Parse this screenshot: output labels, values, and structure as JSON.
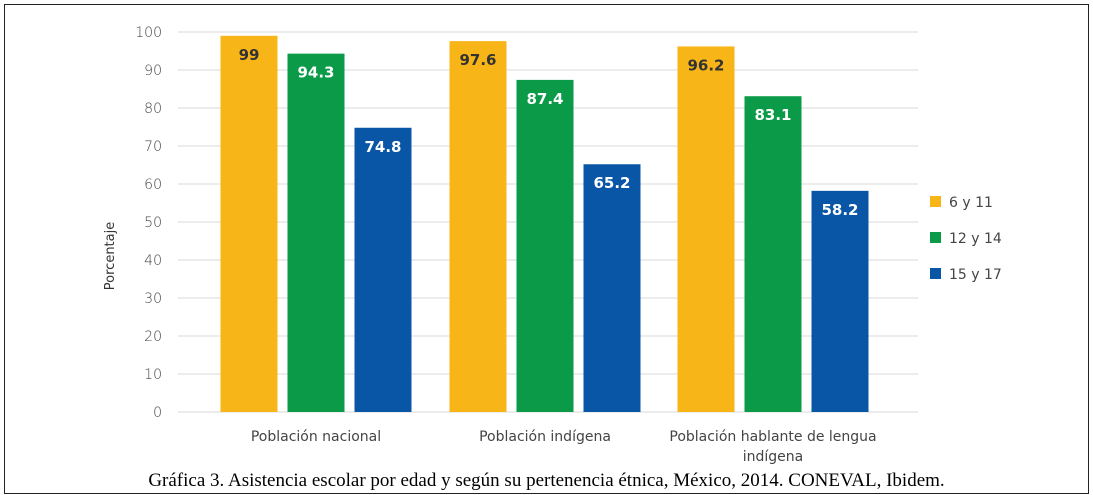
{
  "chart_data": {
    "type": "bar",
    "categories": [
      [
        "Población nacional"
      ],
      [
        "Población indígena"
      ],
      [
        "Población hablante de lengua",
        "indígena"
      ]
    ],
    "series": [
      {
        "name": "6 y 11",
        "color": "#F7B518",
        "values": [
          99,
          97.6,
          96.2
        ]
      },
      {
        "name": "12 y 14",
        "color": "#0A9A48",
        "values": [
          94.3,
          87.4,
          83.1
        ]
      },
      {
        "name": "15 y 17",
        "color": "#0A56A6",
        "values": [
          74.8,
          65.2,
          58.2
        ]
      }
    ],
    "data_labels": [
      [
        "99",
        "97.6",
        "96.2"
      ],
      [
        "94.3",
        "87.4",
        "83.1"
      ],
      [
        "74.8",
        "65.2",
        "58.2"
      ]
    ],
    "label_colors": [
      "#333333",
      "#ffffff",
      "#ffffff"
    ],
    "ylabel": "Porcentaje",
    "xlabel": "",
    "ylim": [
      0,
      100
    ],
    "yticks": [
      0,
      10,
      20,
      30,
      40,
      50,
      60,
      70,
      80,
      90,
      100
    ],
    "grid": true,
    "grid_color": "#D9D9D9",
    "legend_position": "right"
  },
  "caption": "Gráfica 3. Asistencia escolar por edad y según su pertenencia étnica, México, 2014. CONEVAL, Ibidem."
}
